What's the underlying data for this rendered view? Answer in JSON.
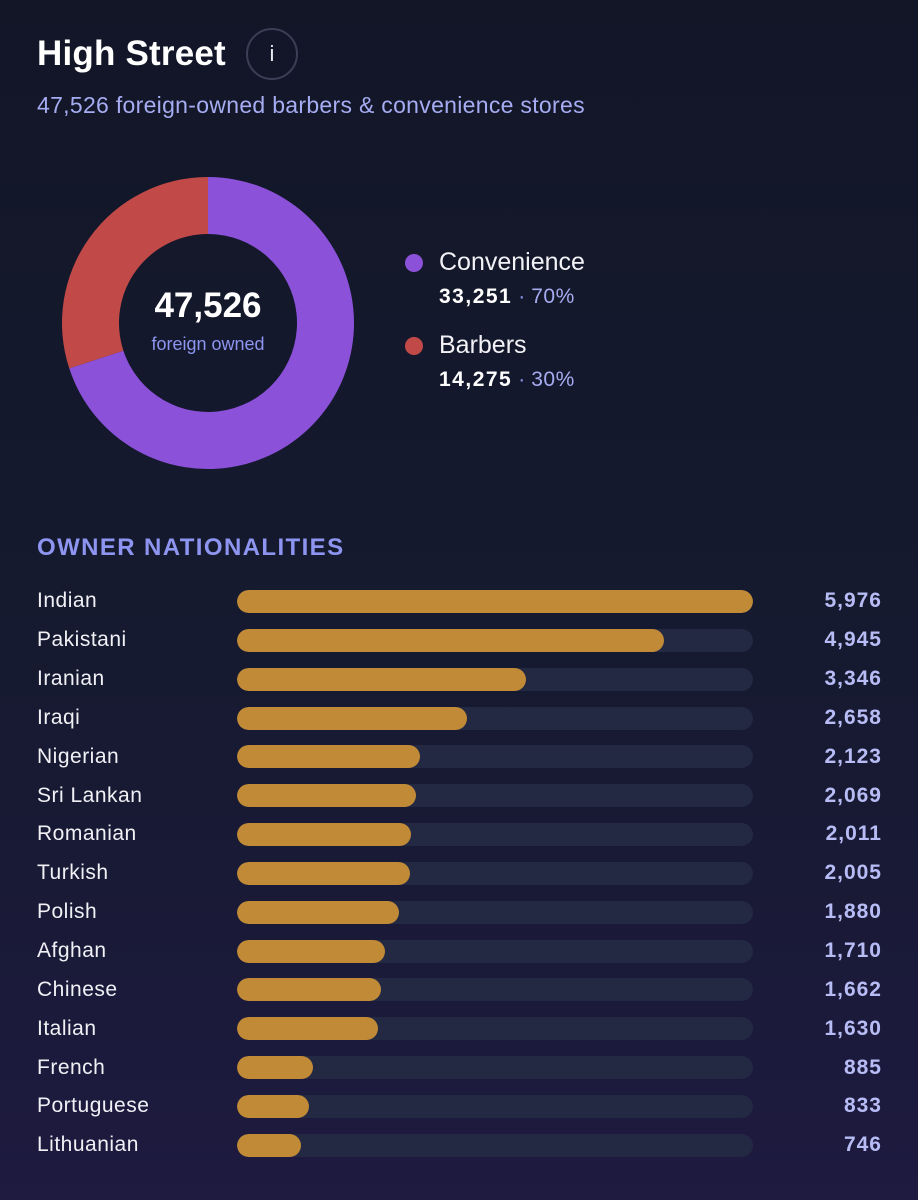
{
  "header": {
    "title": "High Street",
    "info_label": "i",
    "subtitle": "47,526 foreign-owned barbers & convenience stores"
  },
  "donut": {
    "total": "47,526",
    "caption": "foreign owned"
  },
  "legend": [
    {
      "label": "Convenience",
      "value": "33,251",
      "sep": "·",
      "pct": "70%",
      "color": "#8b52d9"
    },
    {
      "label": "Barbers",
      "value": "14,275",
      "sep": "·",
      "pct": "30%",
      "color": "#c14a48"
    }
  ],
  "section": {
    "title": "OWNER NATIONALITIES"
  },
  "chart_data": [
    {
      "type": "pie",
      "categories": [
        "Convenience",
        "Barbers"
      ],
      "values": [
        33251,
        14275
      ],
      "colors": [
        "#8b52d9",
        "#c14a48"
      ]
    },
    {
      "type": "bar",
      "categories": [
        "Indian",
        "Pakistani",
        "Iranian",
        "Iraqi",
        "Nigerian",
        "Sri Lankan",
        "Romanian",
        "Turkish",
        "Polish",
        "Afghan",
        "Chinese",
        "Italian",
        "French",
        "Portuguese",
        "Lithuanian"
      ],
      "values": [
        5976,
        4945,
        3346,
        2658,
        2123,
        2069,
        2011,
        2005,
        1880,
        1710,
        1662,
        1630,
        885,
        833,
        746
      ],
      "value_labels": [
        "5,976",
        "4,945",
        "3,346",
        "2,658",
        "2,123",
        "2,069",
        "2,011",
        "2,005",
        "1,880",
        "1,710",
        "1,662",
        "1,630",
        "885",
        "833",
        "746"
      ],
      "color": "#c18a36"
    }
  ]
}
